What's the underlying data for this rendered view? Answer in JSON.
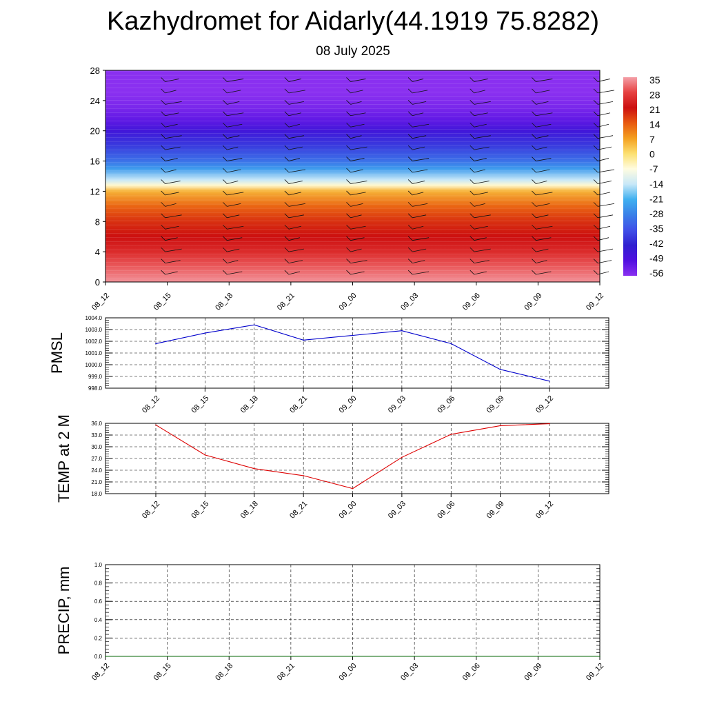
{
  "title": "Kazhydromet for Aidarly(44.1919 75.8282)",
  "subtitle": "08 July 2025",
  "chart_data": [
    {
      "type": "heatmap",
      "title": "Kazhydromet for Aidarly(44.1919 75.8282)",
      "subtitle": "08 July 2025",
      "x_ticks": [
        "08_12",
        "08_15",
        "08_18",
        "08_21",
        "09_00",
        "09_03",
        "09_06",
        "09_09",
        "09_12"
      ],
      "y_ticks": [
        0,
        4,
        8,
        12,
        16,
        20,
        24,
        28
      ],
      "ylim": [
        0,
        28
      ],
      "colorbar": {
        "labels": [
          "35",
          "28",
          "21",
          "14",
          "7",
          "0",
          "-7",
          "-14",
          "-21",
          "-28",
          "-35",
          "-42",
          "-49",
          "-56"
        ],
        "colors": [
          "#f4a0a8",
          "#e64040",
          "#cc1010",
          "#e85a10",
          "#f4a020",
          "#fce070",
          "#fffce0",
          "#c8e8f8",
          "#40b0f0",
          "#3a80e8",
          "#4050e8",
          "#3020d0",
          "#5010e0",
          "#8a30f0"
        ]
      },
      "profile": {
        "heights": [
          0,
          2,
          4,
          6,
          8,
          10,
          12,
          12.8,
          13.5,
          15,
          16,
          18,
          20,
          21.5,
          23,
          25,
          28
        ],
        "temps": [
          34,
          30,
          25,
          21,
          18,
          13,
          5,
          -6,
          -14,
          -24,
          -30,
          -38,
          -46,
          -51,
          -54,
          -57,
          -58
        ]
      },
      "grid": false,
      "legend": "right"
    },
    {
      "type": "line",
      "ylabel": "PMSL",
      "categories": [
        "08_12",
        "08_15",
        "08_18",
        "08_21",
        "09_00",
        "09_03",
        "09_06",
        "09_09",
        "09_12"
      ],
      "series": [
        {
          "values": [
            1001.8,
            1002.7,
            1003.4,
            1002.1,
            1002.5,
            1002.9,
            1001.8,
            999.6,
            998.6
          ],
          "color": "#0000cc"
        }
      ],
      "ylim": [
        998.0,
        1004.0
      ],
      "y_ticks": [
        "998.0",
        "999.0",
        "1000.0",
        "1001.0",
        "1002.0",
        "1003.0",
        "1004.0"
      ],
      "grid": true
    },
    {
      "type": "line",
      "ylabel": "TEMP at 2 M",
      "categories": [
        "08_12",
        "08_15",
        "08_18",
        "08_21",
        "09_00",
        "09_03",
        "09_06",
        "09_09",
        "09_12"
      ],
      "series": [
        {
          "values": [
            35.6,
            27.9,
            24.4,
            22.6,
            19.3,
            27.3,
            33.2,
            35.4,
            35.9
          ],
          "color": "#dd0000"
        }
      ],
      "ylim": [
        18.0,
        36.0
      ],
      "y_ticks": [
        "18.0",
        "21.0",
        "24.0",
        "27.0",
        "30.0",
        "33.0",
        "36.0"
      ],
      "grid": true
    },
    {
      "type": "line",
      "ylabel": "PRECIP, mm",
      "categories": [
        "08_12",
        "08_15",
        "08_18",
        "08_21",
        "09_00",
        "09_03",
        "09_06",
        "09_09",
        "09_12"
      ],
      "series": [
        {
          "values": [
            0,
            0,
            0,
            0,
            0,
            0,
            0,
            0,
            0
          ],
          "color": "#006600"
        }
      ],
      "ylim": [
        0.0,
        1.0
      ],
      "y_ticks": [
        "0.0",
        "0.2",
        "0.4",
        "0.6",
        "0.8",
        "1.0"
      ],
      "grid": true
    }
  ]
}
